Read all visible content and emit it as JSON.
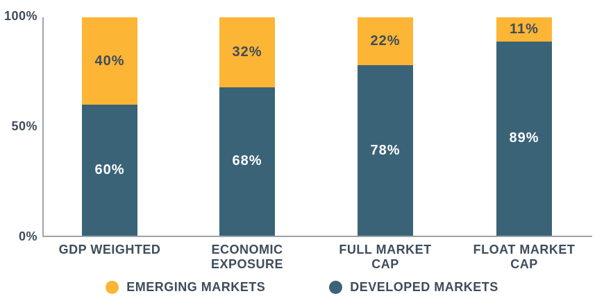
{
  "chart_data": {
    "type": "bar",
    "subtype": "stacked-percent-column",
    "categories": [
      "GDP WEIGHTED",
      "ECONOMIC\nEXPOSURE",
      "FULL MARKET\nCAP",
      "FLOAT MARKET\nCAP"
    ],
    "series": [
      {
        "name": "EMERGING MARKETS",
        "color": "#FCB535",
        "label_text_color": "#3E4C5B",
        "values": [
          40,
          32,
          22,
          11
        ]
      },
      {
        "name": "DEVELOPED MARKETS",
        "color": "#3A6377",
        "label_text_color": "#FFFFFF",
        "values": [
          60,
          68,
          78,
          89
        ]
      }
    ],
    "stack_order": "top-to-bottom",
    "value_label_suffix": "%",
    "y_axis": {
      "ticks": [
        "100%",
        "50%",
        "0%"
      ],
      "min": 0,
      "max": 100
    },
    "grid": false,
    "legend": {
      "position": "bottom",
      "items": [
        {
          "label": "EMERGING MARKETS",
          "color": "#FCB535"
        },
        {
          "label": "DEVELOPED MARKETS",
          "color": "#3A6377"
        }
      ]
    }
  },
  "colors": {
    "emerging": "#FCB535",
    "developed": "#3A6377",
    "text_dark": "#3E4C5B",
    "value_label_on_dark": "#FFFFFF",
    "axis_line": "#9EA3A8",
    "background": "#FFFFFF"
  }
}
